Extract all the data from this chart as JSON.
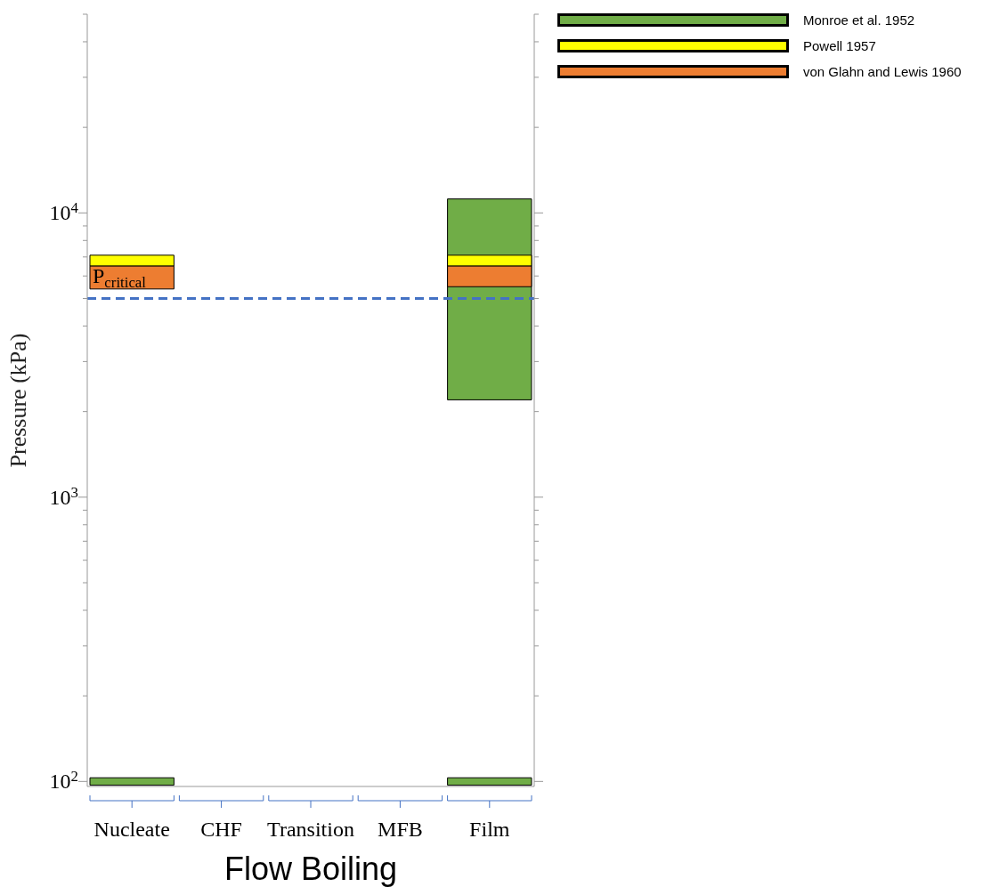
{
  "chart_data": {
    "type": "bar",
    "xlabel": "Flow Boiling",
    "ylabel": "Pressure (kPa)",
    "categories": [
      "Nucleate",
      "CHF",
      "Transition",
      "MFB",
      "Film"
    ],
    "series": [
      {
        "name": "Monroe et al. 1952",
        "color": "#70ad47",
        "values": [
          null,
          null,
          null,
          null,
          9000
        ],
        "base": [
          null,
          null,
          null,
          null,
          2200
        ]
      },
      {
        "name": "Powell 1957",
        "color": "#ffff00",
        "values": [
          600,
          null,
          null,
          null,
          600
        ],
        "base": [
          6500,
          null,
          null,
          null,
          6500
        ]
      },
      {
        "name": "von Glahn and Lewis 1960",
        "color": "#ed7d31",
        "values": [
          1100,
          null,
          null,
          null,
          1000
        ],
        "base": [
          5400,
          null,
          null,
          null,
          5500
        ]
      },
      {
        "color": "#70ad47",
        "values": [
          6,
          null,
          null,
          null,
          6
        ],
        "base": [
          97,
          null,
          null,
          null,
          97
        ]
      }
    ],
    "log": true,
    "ylim": [
      96,
      50000
    ],
    "yticks": [
      {
        "value": 100,
        "label": "10$^{2}$"
      },
      {
        "value": 200,
        "label": null
      },
      {
        "value": 300,
        "label": null
      },
      {
        "value": 400,
        "label": null
      },
      {
        "value": 500,
        "label": null
      },
      {
        "value": 600,
        "label": null
      },
      {
        "value": 700,
        "label": null
      },
      {
        "value": 800,
        "label": null
      },
      {
        "value": 900,
        "label": null
      },
      {
        "value": 1000,
        "label": "10$^{3}$"
      },
      {
        "value": 2000,
        "label": null
      },
      {
        "value": 3000,
        "label": null
      },
      {
        "value": 4000,
        "label": null
      },
      {
        "value": 5000,
        "label": null
      },
      {
        "value": 6000,
        "label": null
      },
      {
        "value": 7000,
        "label": null
      },
      {
        "value": 8000,
        "label": null
      },
      {
        "value": 9000,
        "label": null
      },
      {
        "value": 10000,
        "label": "10$^{4}$"
      },
      {
        "value": 20000,
        "label": null
      },
      {
        "value": 30000,
        "label": null
      },
      {
        "value": 40000,
        "label": null
      },
      {
        "value": 50000,
        "label": null
      }
    ],
    "ref_lines": [
      {
        "axis": "y",
        "value": 5000,
        "label": "P$_{critical}$",
        "color": "#4472c4",
        "line_style": "dashed"
      }
    ],
    "legend": "top right"
  }
}
